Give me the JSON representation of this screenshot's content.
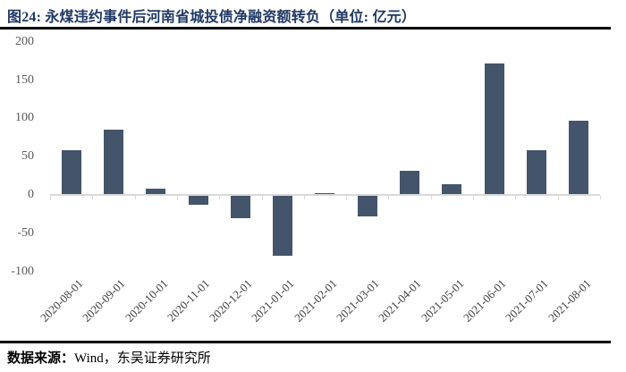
{
  "header": {
    "title": "图24:  永煤违约事件后河南省城投债净融资额转负（单位:  亿元）"
  },
  "footer": {
    "source_label": "数据来源：",
    "source_value": "Wind，东吴证券研究所"
  },
  "chart_data": {
    "type": "bar",
    "title": "永煤违约事件后河南省城投债净融资额转负",
    "unit": "亿元",
    "categories": [
      "2020-08-01",
      "2020-09-01",
      "2020-10-01",
      "2020-11-01",
      "2020-12-01",
      "2021-01-01",
      "2021-02-01",
      "2021-03-01",
      "2021-04-01",
      "2021-05-01",
      "2021-06-01",
      "2021-07-01",
      "2021-08-01"
    ],
    "values": [
      58,
      85,
      8,
      -13,
      -30,
      -79,
      2,
      -28,
      31,
      14,
      172,
      58,
      97
    ],
    "xlabel": "",
    "ylabel": "",
    "ylim": [
      -100,
      200
    ],
    "yticks": [
      200,
      150,
      100,
      50,
      0,
      -50,
      -100
    ],
    "grid": false,
    "legend": false,
    "bar_color": "#44546a",
    "axis_line_color": "#d9d9d9",
    "y_tick_label_color": "#595959",
    "x_tick_label_color": "#404040"
  },
  "colors": {
    "title_text": "#1f3864",
    "divider": "#000000",
    "background": "#ffffff"
  }
}
